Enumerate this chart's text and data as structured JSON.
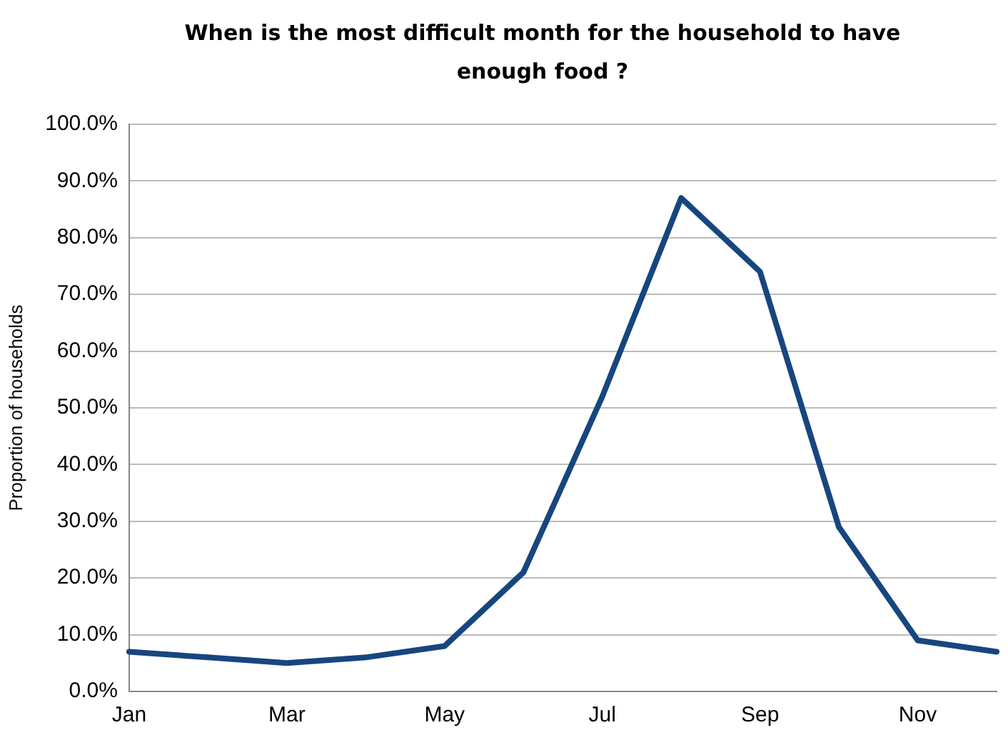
{
  "chart_data": {
    "type": "line",
    "title": "When is the most difficult month for the household  to have enough food ?",
    "ylabel": "Proportion of households",
    "categories": [
      "Jan",
      null,
      "Mar",
      null,
      "May",
      null,
      "Jul",
      null,
      "Sep",
      null,
      "Nov",
      null
    ],
    "series": [
      {
        "color": "#17467f",
        "values": [
          7,
          6,
          5,
          6,
          8,
          21,
          52,
          87,
          74,
          29,
          9,
          7
        ]
      }
    ],
    "ylim": [
      0,
      100
    ],
    "yticks": [
      {
        "value": 0,
        "label": "0.0%"
      },
      {
        "value": 10,
        "label": "10.0%"
      },
      {
        "value": 20,
        "label": "20.0%"
      },
      {
        "value": 30,
        "label": "30.0%"
      },
      {
        "value": 40,
        "label": "40.0%"
      },
      {
        "value": 50,
        "label": "50.0%"
      },
      {
        "value": 60,
        "label": "60.0%"
      },
      {
        "value": 70,
        "label": "70.0%"
      },
      {
        "value": 80,
        "label": "80.0%"
      },
      {
        "value": 90,
        "label": "90.0%"
      },
      {
        "value": 100,
        "label": "100.0%"
      }
    ],
    "grid": "y",
    "legend": false,
    "marker": "none",
    "line_style": "solid"
  }
}
